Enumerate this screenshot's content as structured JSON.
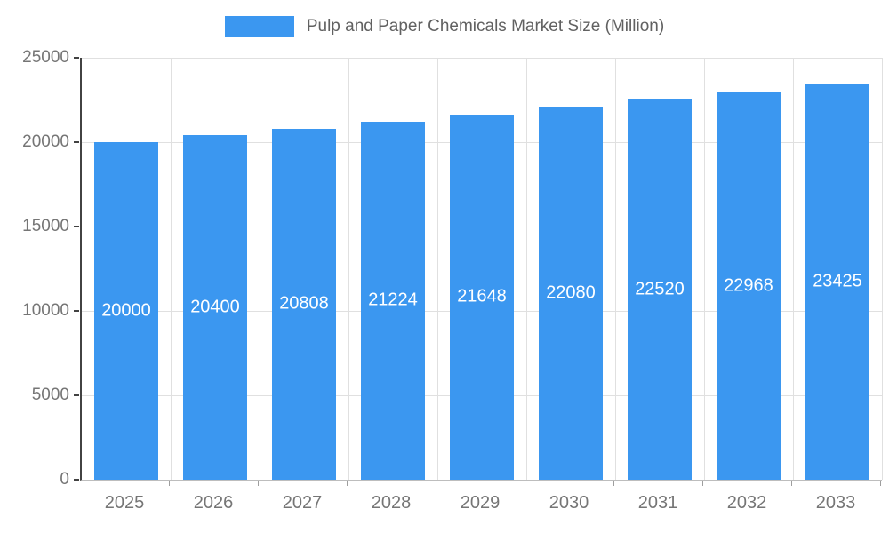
{
  "chart_data": {
    "type": "bar",
    "title": "Pulp and Paper Chemicals Market Size (Million)",
    "categories": [
      "2025",
      "2026",
      "2027",
      "2028",
      "2029",
      "2030",
      "2031",
      "2032",
      "2033"
    ],
    "values": [
      20000,
      20400,
      20808,
      21224,
      21648,
      22080,
      22520,
      22968,
      23425
    ],
    "xlabel": "",
    "ylabel": "",
    "ylim": [
      0,
      25000
    ],
    "yticks": [
      0,
      5000,
      10000,
      15000,
      20000,
      25000
    ],
    "grid": true,
    "legend_position": "top",
    "colors": {
      "bar": "#3b97f0",
      "bar_label": "#ffffff",
      "axis_text": "#757575",
      "legend_text": "#616161",
      "gridline": "#e0e0e0"
    }
  }
}
